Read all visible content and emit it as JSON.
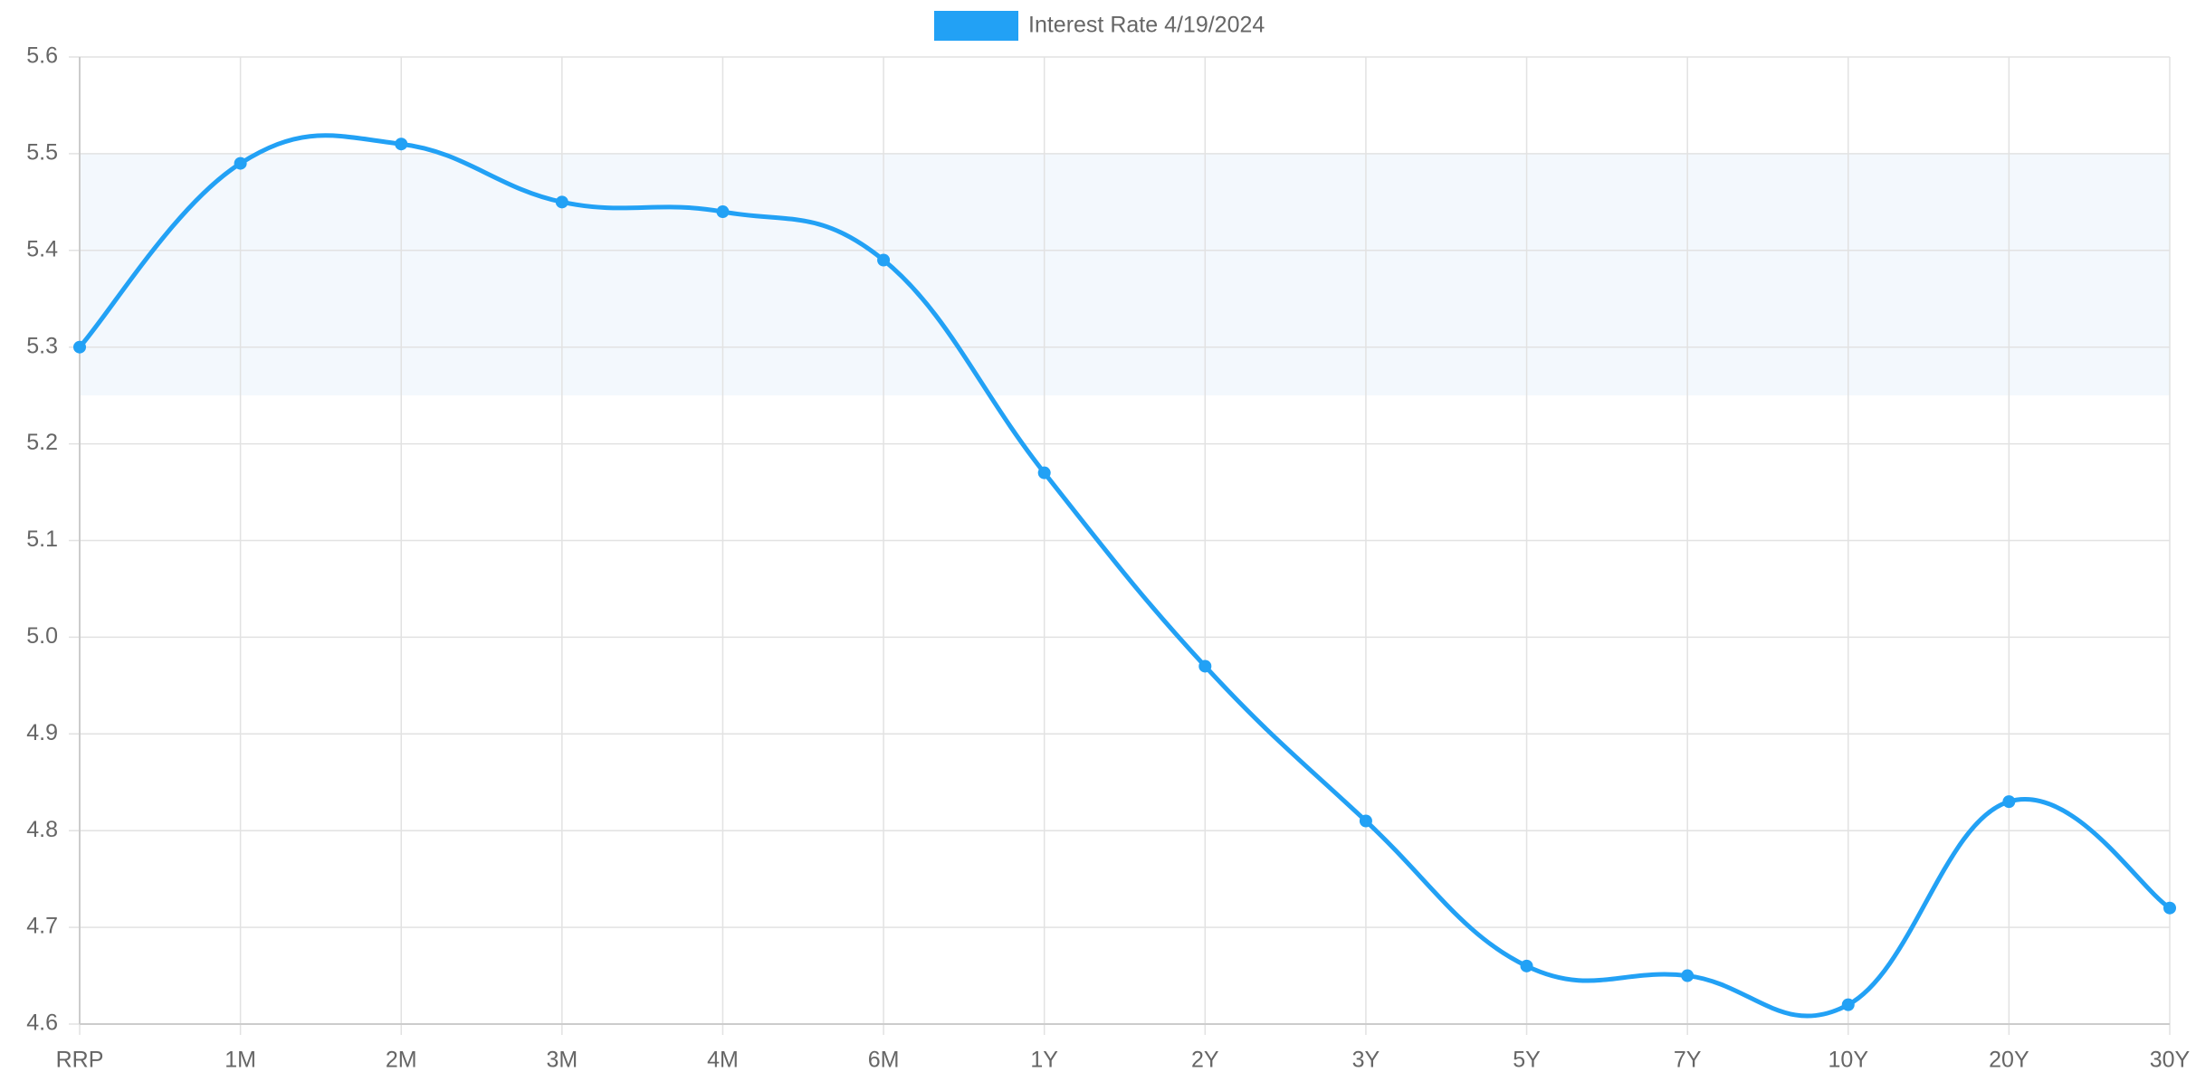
{
  "chart_data": {
    "type": "line",
    "categories": [
      "RRP",
      "1M",
      "2M",
      "3M",
      "4M",
      "6M",
      "1Y",
      "2Y",
      "3Y",
      "5Y",
      "7Y",
      "10Y",
      "20Y",
      "30Y"
    ],
    "series": [
      {
        "name": "Interest Rate 4/19/2024",
        "color": "#22a1f5",
        "values": [
          5.3,
          5.49,
          5.51,
          5.45,
          5.44,
          5.39,
          5.17,
          4.97,
          4.81,
          4.66,
          4.65,
          4.62,
          4.83,
          4.72
        ]
      }
    ],
    "shaded_range": [
      5.25,
      5.5
    ],
    "shaded_color": "#f3f8fd",
    "ylim": [
      4.6,
      5.6
    ],
    "yticks": [
      4.6,
      4.7,
      4.8,
      4.9,
      {
        "value": 5,
        "label": "5.0"
      },
      5.1,
      5.2,
      5.3,
      5.4,
      5.5,
      5.6
    ],
    "grid": true,
    "legend": "top"
  }
}
